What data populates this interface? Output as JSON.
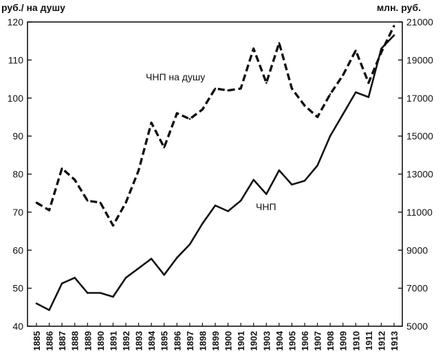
{
  "chart_data": {
    "type": "line",
    "left_axis_label": "руб./ на душу",
    "right_axis_label": "млн. руб.",
    "left_ylim": [
      40,
      120
    ],
    "right_ylim": [
      5000,
      21000
    ],
    "left_ticks": [
      "40",
      "50",
      "60",
      "70",
      "80",
      "90",
      "100",
      "110",
      "120"
    ],
    "right_ticks": [
      "5000",
      "7000",
      "9000",
      "11000",
      "13000",
      "15000",
      "17000",
      "19000",
      "21000"
    ],
    "x": [
      "1885",
      "1886",
      "1887",
      "1888",
      "1889",
      "1890",
      "1891",
      "1892",
      "1893",
      "1894",
      "1895",
      "1896",
      "1897",
      "1898",
      "1899",
      "1900",
      "1901",
      "1902",
      "1903",
      "1904",
      "1905",
      "1906",
      "1907",
      "1908",
      "1909",
      "1910",
      "1911",
      "1912",
      "1913"
    ],
    "grid": false,
    "series": [
      {
        "name": "ЧНП на душу",
        "axis": "left",
        "style": "dashed",
        "values": [
          72.5,
          70.5,
          81.5,
          78.5,
          73,
          72.5,
          66.5,
          72.5,
          81,
          93.5,
          87,
          96,
          94.5,
          97,
          102.5,
          102,
          102.5,
          113,
          104,
          114.5,
          102.5,
          98,
          95,
          101,
          106,
          112.5,
          104,
          112,
          119
        ]
      },
      {
        "name": "ЧНП",
        "axis": "right",
        "style": "solid",
        "values": [
          6200,
          5850,
          7250,
          7550,
          6750,
          6750,
          6550,
          7550,
          8050,
          8550,
          7700,
          8600,
          9300,
          10400,
          11350,
          11050,
          11600,
          12700,
          11950,
          13200,
          12450,
          12650,
          13450,
          15000,
          16150,
          17300,
          17050,
          19600,
          20300
        ]
      }
    ]
  }
}
